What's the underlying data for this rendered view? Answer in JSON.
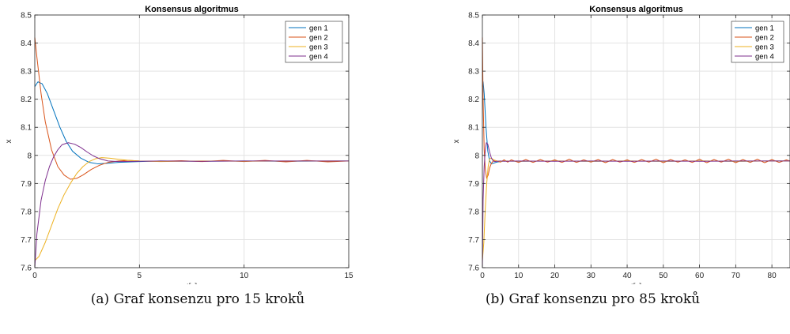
{
  "chart_data": [
    {
      "type": "line",
      "title": "Konsensus algoritmus",
      "xlabel": "t[s]",
      "ylabel": "x",
      "xlim": [
        0,
        15
      ],
      "ylim": [
        7.6,
        8.5
      ],
      "xticks": [
        0,
        5,
        10,
        15
      ],
      "yticks": [
        7.6,
        7.7,
        7.8,
        7.9,
        8.0,
        8.1,
        8.2,
        8.3,
        8.4,
        8.5
      ],
      "grid": true,
      "legend_position": "top-right",
      "series": [
        {
          "name": "gen 1",
          "color": "#0072BD",
          "x": [
            0,
            0.15,
            0.35,
            0.6,
            0.9,
            1.2,
            1.5,
            1.8,
            2.2,
            2.6,
            3.0,
            3.5,
            4.0,
            5.0,
            6.0,
            8.0,
            10.0,
            12.0,
            15.0
          ],
          "y": [
            8.245,
            8.262,
            8.255,
            8.22,
            8.16,
            8.1,
            8.05,
            8.015,
            7.99,
            7.975,
            7.97,
            7.972,
            7.975,
            7.978,
            7.98,
            7.979,
            7.98,
            7.979,
            7.98
          ]
        },
        {
          "name": "gen 2",
          "color": "#D95319",
          "x": [
            0,
            0.1,
            0.3,
            0.5,
            0.8,
            1.1,
            1.4,
            1.7,
            2.0,
            2.3,
            2.7,
            3.1,
            3.5,
            4.0,
            4.5,
            5.0,
            6.0,
            7.0,
            8.0,
            9.0,
            10.0,
            11.0,
            12.0,
            13.0,
            14.0,
            15.0
          ],
          "y": [
            8.42,
            8.35,
            8.22,
            8.12,
            8.02,
            7.96,
            7.93,
            7.915,
            7.918,
            7.93,
            7.95,
            7.965,
            7.975,
            7.98,
            7.982,
            7.98,
            7.979,
            7.981,
            7.978,
            7.982,
            7.978,
            7.982,
            7.977,
            7.982,
            7.977,
            7.98
          ]
        },
        {
          "name": "gen 3",
          "color": "#EDB120",
          "x": [
            0,
            0.2,
            0.5,
            0.8,
            1.1,
            1.4,
            1.7,
            2.0,
            2.3,
            2.6,
            2.9,
            3.2,
            3.6,
            4.0,
            4.5,
            5.0,
            6.0,
            8.0,
            10.0,
            12.0,
            15.0
          ],
          "y": [
            7.625,
            7.64,
            7.69,
            7.75,
            7.81,
            7.86,
            7.9,
            7.935,
            7.96,
            7.978,
            7.988,
            7.992,
            7.99,
            7.986,
            7.982,
            7.98,
            7.978,
            7.98,
            7.979,
            7.98,
            7.98
          ]
        },
        {
          "name": "gen 4",
          "color": "#7E2F8E",
          "x": [
            0,
            0.1,
            0.3,
            0.5,
            0.7,
            0.9,
            1.1,
            1.3,
            1.6,
            1.9,
            2.2,
            2.5,
            2.8,
            3.1,
            3.5,
            4.0,
            5.0,
            6.0,
            8.0,
            10.0,
            12.0,
            15.0
          ],
          "y": [
            7.6,
            7.72,
            7.84,
            7.91,
            7.96,
            7.995,
            8.02,
            8.038,
            8.045,
            8.04,
            8.028,
            8.012,
            7.998,
            7.988,
            7.98,
            7.978,
            7.979,
            7.98,
            7.979,
            7.98,
            7.98,
            7.98
          ]
        }
      ]
    },
    {
      "type": "line",
      "title": "Konsensus algoritmus",
      "xlabel": "t[s]",
      "ylabel": "x",
      "xlim": [
        0,
        85
      ],
      "ylim": [
        7.6,
        8.5
      ],
      "xticks": [
        0,
        10,
        20,
        30,
        40,
        50,
        60,
        70,
        80
      ],
      "yticks": [
        7.6,
        7.7,
        7.8,
        7.9,
        8.0,
        8.1,
        8.2,
        8.3,
        8.4,
        8.5
      ],
      "grid": true,
      "legend_position": "top-right",
      "series": [
        {
          "name": "gen 1",
          "color": "#0072BD",
          "x": [
            0,
            0.2,
            0.5,
            1.0,
            1.5,
            2.0,
            2.5,
            3.0,
            4.0,
            5.0,
            6.0,
            10.0,
            20.0,
            30.0,
            40.0,
            50.0,
            60.0,
            70.0,
            80.0,
            85.0
          ],
          "y": [
            8.245,
            8.262,
            8.22,
            8.1,
            8.015,
            7.98,
            7.97,
            7.972,
            7.976,
            7.978,
            7.98,
            7.979,
            7.98,
            7.979,
            7.98,
            7.979,
            7.98,
            7.979,
            7.98,
            7.98
          ]
        },
        {
          "name": "gen 2",
          "color": "#D95319",
          "x": [
            0,
            0.2,
            0.5,
            0.8,
            1.2,
            1.6,
            2.0,
            2.5,
            3.0,
            3.5,
            4.0,
            5.0,
            6.0,
            7.0,
            8.0,
            10.0,
            12.0,
            14.0,
            16.0,
            18.0,
            20.0,
            22.0,
            24.0,
            26.0,
            28.0,
            30.0,
            32.0,
            34.0,
            36.0,
            38.0,
            40.0,
            42.0,
            44.0,
            46.0,
            48.0,
            50.0,
            52.0,
            54.0,
            56.0,
            58.0,
            60.0,
            62.0,
            64.0,
            66.0,
            68.0,
            70.0,
            72.0,
            74.0,
            76.0,
            78.0,
            80.0,
            82.0,
            84.0,
            85.0
          ],
          "y": [
            8.42,
            8.2,
            8.02,
            7.95,
            7.918,
            7.93,
            7.955,
            7.972,
            7.98,
            7.982,
            7.98,
            7.976,
            7.984,
            7.976,
            7.984,
            7.975,
            7.985,
            7.975,
            7.985,
            7.976,
            7.984,
            7.975,
            7.986,
            7.975,
            7.984,
            7.976,
            7.985,
            7.974,
            7.985,
            7.976,
            7.984,
            7.975,
            7.985,
            7.976,
            7.986,
            7.974,
            7.985,
            7.976,
            7.984,
            7.975,
            7.986,
            7.974,
            7.985,
            7.976,
            7.986,
            7.974,
            7.985,
            7.975,
            7.986,
            7.974,
            7.985,
            7.975,
            7.984,
            7.98
          ]
        },
        {
          "name": "gen 3",
          "color": "#EDB120",
          "x": [
            0,
            0.4,
            0.8,
            1.2,
            1.6,
            2.0,
            2.5,
            3.0,
            3.5,
            4.0,
            5.0,
            6.0,
            10.0,
            20.0,
            30.0,
            40.0,
            50.0,
            60.0,
            70.0,
            80.0,
            85.0
          ],
          "y": [
            7.625,
            7.69,
            7.81,
            7.9,
            7.96,
            7.988,
            7.99,
            7.985,
            7.982,
            7.98,
            7.978,
            7.98,
            7.979,
            7.98,
            7.979,
            7.98,
            7.979,
            7.98,
            7.979,
            7.98,
            7.98
          ]
        },
        {
          "name": "gen 4",
          "color": "#7E2F8E",
          "x": [
            0,
            0.2,
            0.5,
            0.8,
            1.1,
            1.5,
            2.0,
            2.5,
            3.0,
            3.5,
            4.0,
            5.0,
            6.0,
            10.0,
            20.0,
            30.0,
            40.0,
            50.0,
            60.0,
            70.0,
            80.0,
            85.0
          ],
          "y": [
            7.6,
            7.84,
            7.96,
            8.02,
            8.045,
            8.04,
            8.012,
            7.99,
            7.98,
            7.978,
            7.979,
            7.98,
            7.979,
            7.98,
            7.979,
            7.98,
            7.979,
            7.98,
            7.979,
            7.98,
            7.98,
            7.98
          ]
        }
      ]
    }
  ],
  "captions": [
    "(a) Graf konsenzu pro 15 kroků",
    "(b) Graf konsenzu pro 85 kroků"
  ]
}
